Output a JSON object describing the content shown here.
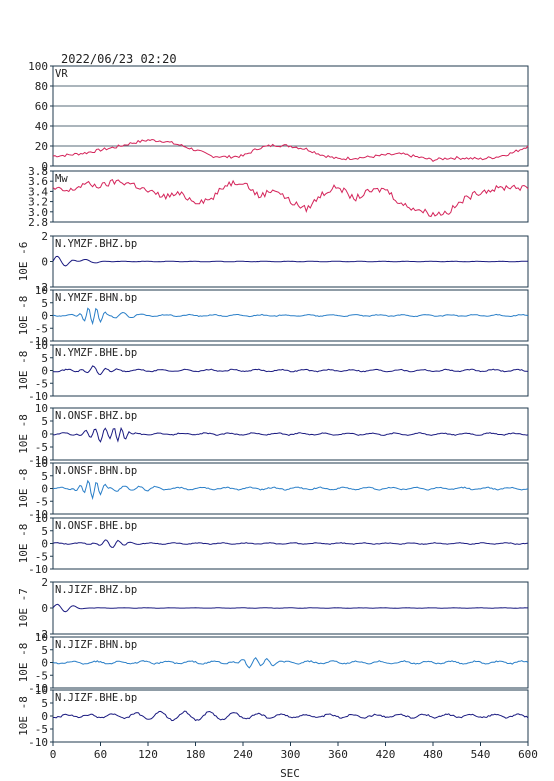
{
  "header": {
    "datetime": "2022/06/23 02:20"
  },
  "xaxis": {
    "label": "SEC",
    "ticks": [
      0,
      60,
      120,
      180,
      240,
      300,
      360,
      420,
      480,
      540,
      600
    ],
    "range": [
      0,
      600
    ]
  },
  "colors": {
    "frame": "#1f3a4d",
    "vr": "#d4245a",
    "mw": "#d4245a",
    "dark_trace": "#1a1a80",
    "light_trace": "#2a7fc8",
    "grid": "#1f3a4d"
  },
  "chart_data": [
    {
      "type": "line",
      "name": "VR",
      "label": "VR",
      "ylim": [
        0,
        100
      ],
      "yticks": [
        0,
        20,
        40,
        60,
        80,
        100
      ],
      "grid": true,
      "color_key": "vr",
      "x": [
        0,
        20,
        40,
        60,
        80,
        100,
        120,
        140,
        160,
        180,
        200,
        220,
        240,
        260,
        280,
        300,
        320,
        340,
        360,
        380,
        400,
        420,
        440,
        460,
        480,
        500,
        520,
        540,
        560,
        580,
        600
      ],
      "y": [
        10,
        11,
        13,
        16,
        19,
        23,
        26,
        25,
        21,
        16,
        10,
        9,
        10,
        18,
        21,
        20,
        17,
        11,
        7,
        8,
        9,
        11,
        12,
        9,
        6,
        8,
        8,
        7,
        9,
        13,
        20
      ]
    },
    {
      "type": "line",
      "name": "Mw",
      "label": "Mw",
      "ylim": [
        2.8,
        3.8
      ],
      "yticks": [
        2.8,
        3.0,
        3.2,
        3.4,
        3.6,
        3.8
      ],
      "grid": false,
      "color_key": "mw",
      "x": [
        0,
        20,
        40,
        60,
        80,
        100,
        120,
        140,
        160,
        180,
        200,
        220,
        240,
        260,
        280,
        300,
        320,
        340,
        360,
        380,
        400,
        420,
        440,
        460,
        480,
        500,
        520,
        540,
        560,
        580,
        600
      ],
      "y": [
        3.45,
        3.4,
        3.55,
        3.5,
        3.6,
        3.55,
        3.4,
        3.3,
        3.35,
        3.2,
        3.25,
        3.55,
        3.6,
        3.3,
        3.45,
        3.2,
        3.05,
        3.35,
        3.5,
        3.25,
        3.4,
        3.45,
        3.15,
        3.05,
        2.95,
        3.0,
        3.25,
        3.4,
        3.45,
        3.5,
        3.45
      ]
    },
    {
      "type": "line",
      "name": "N.YMZF.BHZ.bp",
      "label": "N.YMZF.BHZ.bp",
      "scale": "10E -6",
      "ylim": [
        -2,
        2
      ],
      "yticks": [
        -2,
        0,
        2
      ],
      "color_key": "dark_trace",
      "bursts": [
        [
          5,
          0.4,
          25,
          0.3
        ],
        [
          40,
          0.2,
          20,
          0.2
        ]
      ],
      "noise": 0.03
    },
    {
      "type": "line",
      "name": "N.YMZF.BHN.bp",
      "label": "N.YMZF.BHN.bp",
      "scale": "10E -8",
      "ylim": [
        -10,
        10
      ],
      "yticks": [
        -10,
        -5,
        0,
        5,
        10
      ],
      "color_key": "light_trace",
      "bursts": [
        [
          50,
          3.5,
          14,
          0.6
        ],
        [
          80,
          1.2,
          25,
          0.3
        ]
      ],
      "noise": 0.5
    },
    {
      "type": "line",
      "name": "N.YMZF.BHE.bp",
      "label": "N.YMZF.BHE.bp",
      "scale": "10E -8",
      "ylim": [
        -10,
        10
      ],
      "yticks": [
        -10,
        -5,
        0,
        5,
        10
      ],
      "color_key": "dark_trace",
      "bursts": [
        [
          55,
          1.5,
          20,
          0.4
        ]
      ],
      "noise": 0.6
    },
    {
      "type": "line",
      "name": "N.ONSF.BHZ.bp",
      "label": "N.ONSF.BHZ.bp",
      "scale": "10E -8",
      "ylim": [
        -10,
        10
      ],
      "yticks": [
        -10,
        -5,
        0,
        5,
        10
      ],
      "color_key": "dark_trace",
      "bursts": [
        [
          60,
          2.5,
          20,
          0.5
        ],
        [
          85,
          3.0,
          10,
          0.6
        ]
      ],
      "noise": 0.6
    },
    {
      "type": "line",
      "name": "N.ONSF.BHN.bp",
      "label": "N.ONSF.BHN.bp",
      "scale": "10E -8",
      "ylim": [
        -10,
        10
      ],
      "yticks": [
        -10,
        -5,
        0,
        5,
        10
      ],
      "color_key": "light_trace",
      "bursts": [
        [
          50,
          3.5,
          15,
          0.6
        ],
        [
          100,
          1.2,
          30,
          0.3
        ]
      ],
      "noise": 0.7
    },
    {
      "type": "line",
      "name": "N.ONSF.BHE.bp",
      "label": "N.ONSF.BHE.bp",
      "scale": "10E -8",
      "ylim": [
        -10,
        10
      ],
      "yticks": [
        -10,
        -5,
        0,
        5,
        10
      ],
      "color_key": "dark_trace",
      "bursts": [
        [
          75,
          1.5,
          20,
          0.4
        ]
      ],
      "noise": 0.4
    },
    {
      "type": "line",
      "name": "N.JIZF.BHZ.bp",
      "label": "N.JIZF.BHZ.bp",
      "scale": "10E -7",
      "ylim": [
        -2,
        2
      ],
      "yticks": [
        -2,
        0,
        2
      ],
      "color_key": "dark_trace",
      "bursts": [
        [
          10,
          0.3,
          20,
          0.3
        ]
      ],
      "noise": 0.02
    },
    {
      "type": "line",
      "name": "N.JIZF.BHN.bp",
      "label": "N.JIZF.BHN.bp",
      "scale": "10E -8",
      "ylim": [
        -10,
        10
      ],
      "yticks": [
        -10,
        -5,
        0,
        5,
        10
      ],
      "color_key": "light_trace",
      "bursts": [
        [
          255,
          1.8,
          25,
          0.4
        ]
      ],
      "noise": 0.8
    },
    {
      "type": "line",
      "name": "N.JIZF.BHE.bp",
      "label": "N.JIZF.BHE.bp",
      "scale": "10E -8",
      "ylim": [
        -10,
        10
      ],
      "yticks": [
        -10,
        -5,
        0,
        5,
        10
      ],
      "color_key": "dark_trace",
      "bursts": [
        [
          150,
          1.2,
          100,
          0.2
        ]
      ],
      "noise": 1.0
    }
  ]
}
